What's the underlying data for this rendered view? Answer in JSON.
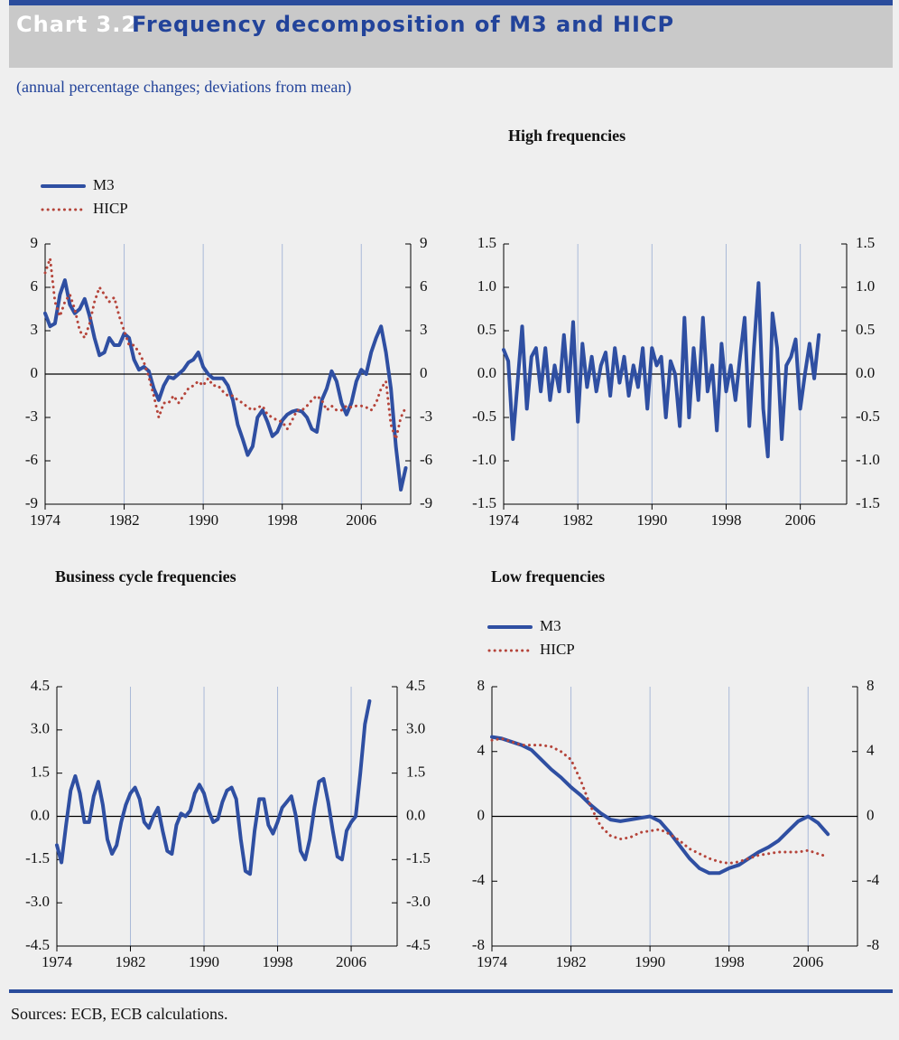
{
  "header": {
    "label": "Chart 3.2",
    "title": "Frequency decomposition of M3 and HICP",
    "subtitle": "(annual percentage changes; deviations from mean)"
  },
  "footer": {
    "sources": "Sources: ECB, ECB calculations."
  },
  "chart_data": [
    {
      "type": "line",
      "x": [
        1974,
        1974.5,
        1975,
        1975.5,
        1976,
        1976.5,
        1977,
        1977.5,
        1978,
        1978.5,
        1979,
        1979.5,
        1980,
        1980.5,
        1981,
        1981.5,
        1982,
        1982.5,
        1983,
        1983.5,
        1984,
        1984.5,
        1985,
        1985.5,
        1986,
        1986.5,
        1987,
        1987.5,
        1988,
        1988.5,
        1989,
        1989.5,
        1990,
        1990.5,
        1991,
        1991.5,
        1992,
        1992.5,
        1993,
        1993.5,
        1994,
        1994.5,
        1995,
        1995.5,
        1996,
        1996.5,
        1997,
        1997.5,
        1998,
        1998.5,
        1999,
        1999.5,
        2000,
        2000.5,
        2001,
        2001.5,
        2002,
        2002.5,
        2003,
        2003.5,
        2004,
        2004.5,
        2005,
        2005.5,
        2006,
        2006.5,
        2007,
        2007.5,
        2008,
        2008.5,
        2009,
        2009.5,
        2010,
        2010.5
      ],
      "series": [
        {
          "name": "M3",
          "color": "#2f4fa2",
          "style": "solid",
          "values": [
            4.2,
            3.3,
            3.5,
            5.5,
            6.5,
            4.8,
            4.2,
            4.5,
            5.2,
            4.0,
            2.5,
            1.3,
            1.5,
            2.5,
            2.0,
            2.0,
            2.8,
            2.5,
            1.0,
            0.3,
            0.5,
            0.2,
            -1.0,
            -1.8,
            -0.8,
            -0.2,
            -0.3,
            0.0,
            0.3,
            0.8,
            1.0,
            1.5,
            0.5,
            0.0,
            -0.3,
            -0.3,
            -0.3,
            -0.8,
            -1.8,
            -3.5,
            -4.5,
            -5.6,
            -5.0,
            -3.0,
            -2.5,
            -3.3,
            -4.3,
            -4.0,
            -3.2,
            -2.8,
            -2.6,
            -2.5,
            -2.6,
            -3.0,
            -3.8,
            -4.0,
            -1.8,
            -1.0,
            0.2,
            -0.5,
            -2.0,
            -2.8,
            -2.0,
            -0.5,
            0.3,
            0.0,
            1.5,
            2.5,
            3.3,
            1.5,
            -1.0,
            -5.0,
            -8.0,
            -6.5
          ]
        },
        {
          "name": "HICP",
          "color": "#b5443a",
          "style": "dotted",
          "values": [
            7.0,
            8.0,
            5.0,
            4.0,
            5.0,
            5.5,
            4.5,
            3.0,
            2.5,
            3.5,
            5.0,
            6.0,
            5.5,
            5.0,
            5.3,
            4.0,
            3.0,
            2.0,
            2.0,
            1.5,
            0.8,
            -0.2,
            -1.5,
            -3.0,
            -2.0,
            -2.0,
            -1.5,
            -2.0,
            -1.5,
            -1.0,
            -0.8,
            -0.5,
            -0.8,
            -0.3,
            -0.8,
            -0.8,
            -1.2,
            -1.5,
            -1.5,
            -1.8,
            -2.0,
            -2.3,
            -2.5,
            -2.3,
            -2.2,
            -2.8,
            -3.0,
            -3.2,
            -3.3,
            -3.8,
            -3.2,
            -2.5,
            -2.5,
            -2.2,
            -1.8,
            -1.5,
            -1.8,
            -2.5,
            -2.2,
            -2.5,
            -2.5,
            -2.2,
            -2.3,
            -2.2,
            -2.2,
            -2.3,
            -2.5,
            -2.0,
            -1.0,
            -0.5,
            -3.5,
            -4.5,
            -3.0,
            -2.3
          ]
        }
      ],
      "xlim": [
        1974,
        2011
      ],
      "xticks": [
        1974,
        1982,
        1990,
        1998,
        2006
      ],
      "ylim": [
        -9,
        9
      ],
      "yticks": [
        -9,
        -6,
        -3,
        0,
        3,
        6,
        9
      ],
      "y2lim": [
        -9,
        9
      ],
      "y2ticks": [
        -9,
        -6,
        -3,
        0,
        3,
        6,
        9
      ],
      "grid": "x"
    },
    {
      "type": "line",
      "title": "High frequencies",
      "x": [
        1974,
        1974.5,
        1975,
        1975.5,
        1976,
        1976.5,
        1977,
        1977.5,
        1978,
        1978.5,
        1979,
        1979.5,
        1980,
        1980.5,
        1981,
        1981.5,
        1982,
        1982.5,
        1983,
        1983.5,
        1984,
        1984.5,
        1985,
        1985.5,
        1986,
        1986.5,
        1987,
        1987.5,
        1988,
        1988.5,
        1989,
        1989.5,
        1990,
        1990.5,
        1991,
        1991.5,
        1992,
        1992.5,
        1993,
        1993.5,
        1994,
        1994.5,
        1995,
        1995.5,
        1996,
        1996.5,
        1997,
        1997.5,
        1998,
        1998.5,
        1999,
        1999.5,
        2000,
        2000.5,
        2001,
        2001.5,
        2002,
        2002.5,
        2003,
        2003.5,
        2004,
        2004.5,
        2005,
        2005.5,
        2006,
        2006.5,
        2007,
        2007.5,
        2008
      ],
      "series": [
        {
          "color": "#2f4fa2",
          "style": "solid",
          "values": [
            0.28,
            0.15,
            -0.75,
            -0.1,
            0.55,
            -0.4,
            0.2,
            0.3,
            -0.2,
            0.3,
            -0.3,
            0.1,
            -0.2,
            0.45,
            -0.2,
            0.6,
            -0.55,
            0.35,
            -0.15,
            0.2,
            -0.2,
            0.1,
            0.25,
            -0.25,
            0.3,
            -0.1,
            0.2,
            -0.25,
            0.1,
            -0.15,
            0.3,
            -0.4,
            0.3,
            0.1,
            0.2,
            -0.5,
            0.15,
            0.0,
            -0.6,
            0.65,
            -0.5,
            0.3,
            -0.3,
            0.65,
            -0.2,
            0.1,
            -0.65,
            0.35,
            -0.2,
            0.1,
            -0.3,
            0.2,
            0.65,
            -0.6,
            0.3,
            1.05,
            -0.4,
            -0.95,
            0.7,
            0.3,
            -0.75,
            0.1,
            0.2,
            0.4,
            -0.4,
            0.0,
            0.35,
            -0.05,
            0.45
          ]
        }
      ],
      "xlim": [
        1974,
        2011
      ],
      "xticks": [
        1974,
        1982,
        1990,
        1998,
        2006
      ],
      "ylim": [
        -1.5,
        1.5
      ],
      "yticks": [
        -1.5,
        {
          "value": -1.0,
          "label": "-1.0"
        },
        -0.5,
        {
          "value": 0,
          "label": "0.0"
        },
        0.5,
        {
          "value": 1.0,
          "label": "1.0"
        },
        1.5
      ],
      "y2lim": [
        -1.5,
        1.5
      ],
      "y2ticks": [
        -1.5,
        {
          "value": -1.0,
          "label": "-1.0"
        },
        -0.5,
        {
          "value": 0,
          "label": "0.0"
        },
        0.5,
        {
          "value": 1.0,
          "label": "1.0"
        },
        1.5
      ],
      "grid": "x"
    },
    {
      "type": "line",
      "title": "Business cycle frequencies",
      "x": [
        1974,
        1974.5,
        1975,
        1975.5,
        1976,
        1976.5,
        1977,
        1977.5,
        1978,
        1978.5,
        1979,
        1979.5,
        1980,
        1980.5,
        1981,
        1981.5,
        1982,
        1982.5,
        1983,
        1983.5,
        1984,
        1984.5,
        1985,
        1985.5,
        1986,
        1986.5,
        1987,
        1987.5,
        1988,
        1988.5,
        1989,
        1989.5,
        1990,
        1990.5,
        1991,
        1991.5,
        1992,
        1992.5,
        1993,
        1993.5,
        1994,
        1994.5,
        1995,
        1995.5,
        1996,
        1996.5,
        1997,
        1997.5,
        1998,
        1998.5,
        1999,
        1999.5,
        2000,
        2000.5,
        2001,
        2001.5,
        2002,
        2002.5,
        2003,
        2003.5,
        2004,
        2004.5,
        2005,
        2005.5,
        2006,
        2006.5,
        2007,
        2007.5,
        2008
      ],
      "series": [
        {
          "color": "#2f4fa2",
          "style": "solid",
          "values": [
            -1.0,
            -1.6,
            -0.3,
            0.9,
            1.4,
            0.8,
            -0.2,
            -0.2,
            0.7,
            1.2,
            0.4,
            -0.8,
            -1.3,
            -1.0,
            -0.2,
            0.4,
            0.8,
            1.0,
            0.6,
            -0.2,
            -0.4,
            0.0,
            0.3,
            -0.5,
            -1.2,
            -1.3,
            -0.3,
            0.1,
            0.0,
            0.2,
            0.8,
            1.1,
            0.8,
            0.2,
            -0.2,
            -0.1,
            0.5,
            0.9,
            1.0,
            0.6,
            -0.8,
            -1.9,
            -2.0,
            -0.5,
            0.6,
            0.6,
            -0.3,
            -0.6,
            -0.2,
            0.3,
            0.5,
            0.7,
            0.0,
            -1.2,
            -1.5,
            -0.8,
            0.3,
            1.2,
            1.3,
            0.5,
            -0.5,
            -1.4,
            -1.5,
            -0.5,
            -0.2,
            0.0,
            1.5,
            3.2,
            4.0
          ]
        }
      ],
      "xlim": [
        1974,
        2011
      ],
      "xticks": [
        1974,
        1982,
        1990,
        1998,
        2006
      ],
      "ylim": [
        -4.5,
        4.5
      ],
      "yticks": [
        -4.5,
        {
          "value": -3.0,
          "label": "-3.0"
        },
        -1.5,
        {
          "value": 0,
          "label": "0.0"
        },
        1.5,
        {
          "value": 3.0,
          "label": "3.0"
        },
        4.5
      ],
      "y2lim": [
        -4.5,
        4.5
      ],
      "y2ticks": [
        -4.5,
        {
          "value": -3.0,
          "label": "-3.0"
        },
        -1.5,
        {
          "value": 0,
          "label": "0.0"
        },
        1.5,
        {
          "value": 3.0,
          "label": "3.0"
        },
        4.5
      ],
      "grid": "x"
    },
    {
      "type": "line",
      "title": "Low frequencies",
      "x": [
        1974,
        1975,
        1976,
        1977,
        1978,
        1979,
        1980,
        1981,
        1982,
        1983,
        1984,
        1985,
        1986,
        1987,
        1988,
        1989,
        1990,
        1991,
        1992,
        1993,
        1994,
        1995,
        1996,
        1997,
        1998,
        1999,
        2000,
        2001,
        2002,
        2003,
        2004,
        2005,
        2006,
        2007,
        2008
      ],
      "series": [
        {
          "name": "M3",
          "color": "#2f4fa2",
          "style": "solid",
          "values": [
            4.9,
            4.8,
            4.6,
            4.4,
            4.1,
            3.5,
            2.9,
            2.4,
            1.8,
            1.3,
            0.7,
            0.2,
            -0.2,
            -0.3,
            -0.2,
            -0.1,
            0.0,
            -0.3,
            -1.0,
            -1.8,
            -2.6,
            -3.2,
            -3.5,
            -3.5,
            -3.2,
            -3.0,
            -2.6,
            -2.2,
            -1.9,
            -1.5,
            -0.9,
            -0.3,
            0.0,
            -0.4,
            -1.1
          ]
        },
        {
          "name": "HICP",
          "color": "#b5443a",
          "style": "dotted",
          "values": [
            4.7,
            4.8,
            4.6,
            4.4,
            4.4,
            4.4,
            4.3,
            4.0,
            3.5,
            2.2,
            0.6,
            -0.6,
            -1.2,
            -1.4,
            -1.3,
            -1.0,
            -0.9,
            -0.8,
            -1.1,
            -1.5,
            -2.0,
            -2.3,
            -2.6,
            -2.8,
            -2.9,
            -2.8,
            -2.6,
            -2.4,
            -2.3,
            -2.2,
            -2.2,
            -2.2,
            -2.1,
            -2.3,
            -2.5
          ]
        }
      ],
      "xlim": [
        1974,
        2011
      ],
      "xticks": [
        1974,
        1982,
        1990,
        1998,
        2006
      ],
      "ylim": [
        -8,
        8
      ],
      "yticks": [
        -8,
        -4,
        0,
        4,
        8
      ],
      "y2lim": [
        -8,
        8
      ],
      "y2ticks": [
        -8,
        -4,
        0,
        4,
        8
      ],
      "grid": "x"
    }
  ]
}
